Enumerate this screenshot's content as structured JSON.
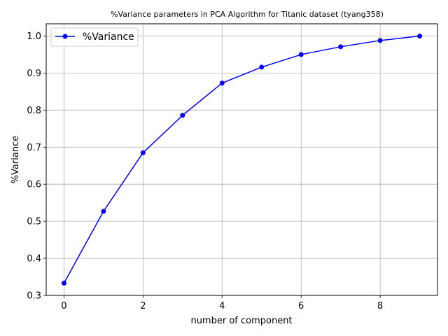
{
  "chart_data": {
    "type": "line",
    "title": "%Variance parameters in PCA Algorithm for Titanic dataset (tyang358)",
    "xlabel": "number of component",
    "ylabel": "%Variance",
    "xlim": [
      -0.45,
      9.45
    ],
    "ylim": [
      0.3,
      1.033
    ],
    "xticks": [
      0,
      2,
      4,
      6,
      8
    ],
    "xtick_labels": [
      "0",
      "2",
      "4",
      "6",
      "8"
    ],
    "yticks": [
      0.3,
      0.4,
      0.5,
      0.6,
      0.7,
      0.8,
      0.9,
      1.0
    ],
    "ytick_labels": [
      "0.3",
      "0.4",
      "0.5",
      "0.6",
      "0.7",
      "0.8",
      "0.9",
      "1.0"
    ],
    "grid": true,
    "legend_position": "upper-left",
    "series": [
      {
        "name": "%Variance",
        "color": "#0000ff",
        "marker": "circle",
        "x": [
          0,
          1,
          2,
          3,
          4,
          5,
          6,
          7,
          8,
          9
        ],
        "values": [
          0.333,
          0.527,
          0.685,
          0.786,
          0.873,
          0.916,
          0.95,
          0.971,
          0.988,
          1.0
        ]
      }
    ]
  }
}
